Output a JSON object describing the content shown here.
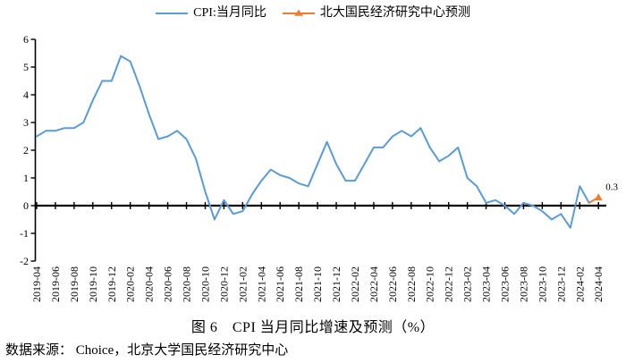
{
  "legend": {
    "items": [
      {
        "label": "CPI:当月同比",
        "color": "#5B9BD5",
        "marker": "line"
      },
      {
        "label": "北大国民经济研究中心预测",
        "color": "#ED7D31",
        "marker": "line-triangle"
      }
    ]
  },
  "caption": {
    "title": "图 6　CPI 当月同比增速及预测（%）"
  },
  "footer": {
    "source": "数据来源： Choice，北京大学国民经济研究中心"
  },
  "chart_data": {
    "type": "line",
    "title": "图 6 CPI 当月同比增速及预测（%）",
    "x": [
      "2019-04",
      "2019-05",
      "2019-06",
      "2019-07",
      "2019-08",
      "2019-09",
      "2019-10",
      "2019-11",
      "2019-12",
      "2020-01",
      "2020-02",
      "2020-03",
      "2020-04",
      "2020-05",
      "2020-06",
      "2020-07",
      "2020-08",
      "2020-09",
      "2020-10",
      "2020-11",
      "2020-12",
      "2021-01",
      "2021-02",
      "2021-03",
      "2021-04",
      "2021-05",
      "2021-06",
      "2021-07",
      "2021-08",
      "2021-09",
      "2021-10",
      "2021-11",
      "2021-12",
      "2022-01",
      "2022-02",
      "2022-03",
      "2022-04",
      "2022-05",
      "2022-06",
      "2022-07",
      "2022-08",
      "2022-09",
      "2022-10",
      "2022-11",
      "2022-12",
      "2023-01",
      "2023-02",
      "2023-03",
      "2023-04",
      "2023-05",
      "2023-06",
      "2023-07",
      "2023-08",
      "2023-09",
      "2023-10",
      "2023-11",
      "2023-12",
      "2024-01",
      "2024-02",
      "2024-03",
      "2024-04"
    ],
    "series": [
      {
        "name": "CPI:当月同比",
        "color": "#5B9BD5",
        "from_index": 0,
        "values": [
          2.5,
          2.7,
          2.7,
          2.8,
          2.8,
          3.0,
          3.8,
          4.5,
          4.5,
          5.4,
          5.2,
          4.3,
          3.3,
          2.4,
          2.5,
          2.7,
          2.4,
          1.7,
          0.5,
          -0.5,
          0.2,
          -0.3,
          -0.2,
          0.4,
          0.9,
          1.3,
          1.1,
          1.0,
          0.8,
          0.7,
          1.5,
          2.3,
          1.5,
          0.9,
          0.9,
          1.5,
          2.1,
          2.1,
          2.5,
          2.7,
          2.5,
          2.8,
          2.1,
          1.6,
          1.8,
          2.1,
          1.0,
          0.7,
          0.1,
          0.2,
          0.0,
          -0.3,
          0.1,
          0.0,
          -0.2,
          -0.5,
          -0.3,
          -0.8,
          0.7,
          0.1
        ]
      },
      {
        "name": "北大国民经济研究中心预测",
        "color": "#ED7D31",
        "from_index": 59,
        "values": [
          0.1,
          0.3
        ],
        "marker": "triangle",
        "data_label": "0.3"
      }
    ],
    "ylim": [
      -2,
      6
    ],
    "yticks": [
      -2,
      -1,
      0,
      1,
      2,
      3,
      4,
      5,
      6
    ],
    "xtick_every": 2,
    "grid": false,
    "legend_position": "top",
    "axis_color": "#000000"
  }
}
